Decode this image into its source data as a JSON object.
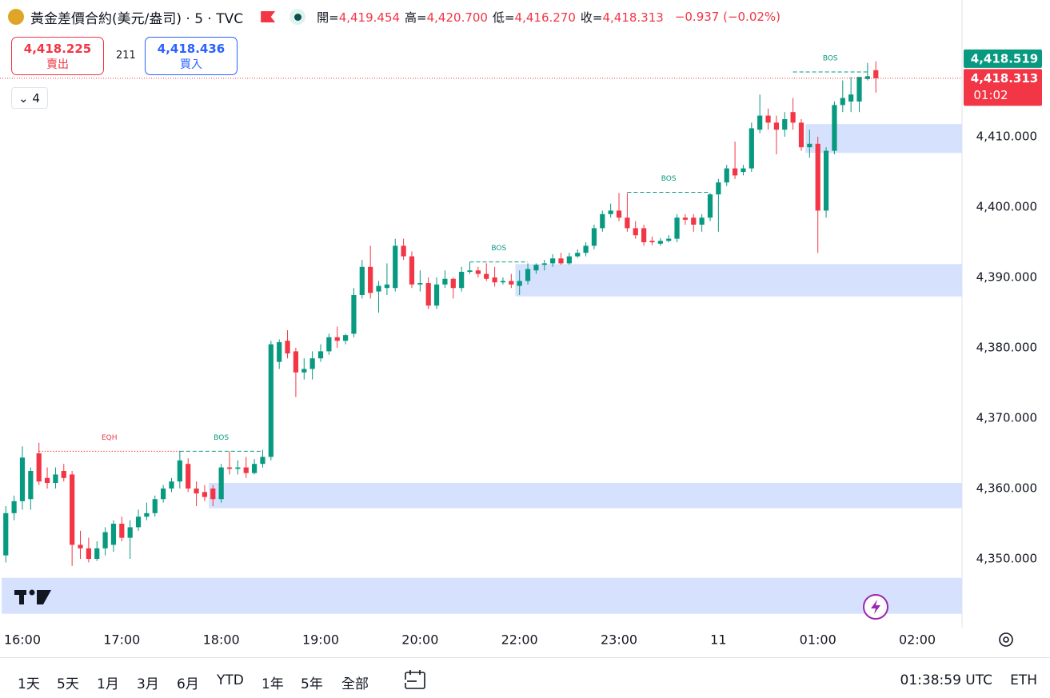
{
  "header": {
    "symbol": "黃金差價合約(美元/盎司) · 5 · TVC",
    "ohlc": [
      {
        "label": "開=",
        "value": "4,419.454"
      },
      {
        "label": "高=",
        "value": "4,420.700"
      },
      {
        "label": "低=",
        "value": "4,416.270"
      },
      {
        "label": "收=",
        "value": "4,418.313"
      }
    ],
    "change": "−0.937 (−0.02%)"
  },
  "trade": {
    "sell_price": "4,418.225",
    "sell_label": "賣出",
    "spread": "211",
    "buy_price": "4,418.436",
    "buy_label": "買入"
  },
  "indicators": "4",
  "toolbar": {
    "ranges": [
      "1天",
      "5天",
      "1月",
      "3月",
      "6月",
      "YTD",
      "1年",
      "5年",
      "全部"
    ],
    "clock": "01:38:59 UTC",
    "session": "ETH"
  },
  "chart_data": {
    "type": "candlestick",
    "up_color": "#089981",
    "down_color": "#f23645",
    "xlim": [
      -0.7,
      115.4
    ],
    "xticks": [
      {
        "value": 2,
        "label": "16:00"
      },
      {
        "value": 14,
        "label": "17:00"
      },
      {
        "value": 26,
        "label": "18:00"
      },
      {
        "value": 38,
        "label": "19:00"
      },
      {
        "value": 50,
        "label": "20:00"
      },
      {
        "value": 62,
        "label": "22:00"
      },
      {
        "value": 74,
        "label": "23:00"
      },
      {
        "value": 86,
        "label": "11"
      },
      {
        "value": 98,
        "label": "01:00"
      },
      {
        "value": 110,
        "label": "02:00"
      }
    ],
    "ylim": [
      4340.23,
      4429.43
    ],
    "yticks": [
      {
        "value": 4350,
        "label": "4,350.000"
      },
      {
        "value": 4360,
        "label": "4,360.000"
      },
      {
        "value": 4370,
        "label": "4,370.000"
      },
      {
        "value": 4380,
        "label": "4,380.000"
      },
      {
        "value": 4390,
        "label": "4,390.000"
      },
      {
        "value": 4400,
        "label": "4,400.000"
      },
      {
        "value": 4410,
        "label": "4,410.000"
      }
    ],
    "grid": true,
    "open": [
      4350.5,
      4356.5,
      4358.2,
      4358.5,
      4365,
      4361.5,
      4360.8,
      4362.5,
      4362,
      4352,
      4351.5,
      4350,
      4351.5,
      4352,
      4355,
      4353,
      4354.5,
      4356,
      4356.5,
      4358.5,
      4360,
      4361,
      4363.5,
      4360,
      4359.5,
      4360,
      4358.5,
      4363,
      4362.8,
      4363,
      4362.2,
      4363.5,
      4364.5,
      4378,
      4381,
      4379.5,
      4376.5,
      4377,
      4378.5,
      4379.5,
      4381.5,
      4381,
      4382,
      4387.5,
      4391.5,
      4388,
      4388.5,
      4388.5,
      4394.5,
      4393,
      4389,
      4389.2,
      4386,
      4389,
      4389.8,
      4388.5,
      4390.8,
      4391,
      4390.5,
      4390,
      4389.3,
      4389.5,
      4388.8,
      4389.5,
      4391,
      4391.8,
      4392,
      4392.7,
      4392,
      4393,
      4393.5,
      4394.5,
      4397,
      4399,
      4399.5,
      4398.5,
      4397,
      4397,
      4395.2,
      4394.8,
      4395.2,
      4395.5,
      4398.5,
      4398.5,
      4397.5,
      4398.5,
      4401.8,
      4403.5,
      4405.5,
      4405,
      4405.5,
      4411,
      4413,
      4412,
      4411,
      4413.5,
      4412,
      4408.5,
      4409,
      4399.5,
      4408,
      4414.5,
      4415,
      4415,
      4418.2,
      4419.454
    ],
    "high": [
      4357.5,
      4359,
      4366,
      4363,
      4366.5,
      4363,
      4363,
      4363.5,
      4362.5,
      4354,
      4353,
      4352.5,
      4354.5,
      4355.5,
      4356,
      4355.5,
      4357,
      4358,
      4359,
      4360.5,
      4361.5,
      4365.3,
      4364.3,
      4361,
      4360.5,
      4360.5,
      4363.5,
      4365.3,
      4364,
      4364.5,
      4364.2,
      4365.5,
      4381,
      4381.2,
      4382.5,
      4380,
      4378.5,
      4379.5,
      4380.5,
      4382,
      4383,
      4382,
      4388.5,
      4392.5,
      4394.5,
      4389.5,
      4392,
      4395.5,
      4395.5,
      4393.7,
      4391,
      4390,
      4390,
      4391,
      4390,
      4391.5,
      4392.2,
      4391.5,
      4392,
      4391.5,
      4390,
      4390.5,
      4391,
      4392,
      4392,
      4392.5,
      4393.3,
      4393.5,
      4393.5,
      4394,
      4395,
      4397.5,
      4399.5,
      4400.5,
      4402,
      4402,
      4398,
      4397.5,
      4395.8,
      4395.6,
      4396,
      4399,
      4399,
      4399,
      4399,
      4402,
      4404,
      4406,
      4409.3,
      4406,
      4412,
      4416,
      4414,
      4413,
      4413.5,
      4415.5,
      4412.5,
      4411,
      4410,
      4408.5,
      4415,
      4418,
      4418.5,
      4418.5,
      4420.5,
      4420.7
    ],
    "low": [
      4349.5,
      4355.5,
      4357,
      4357,
      4360.5,
      4360,
      4360,
      4361,
      4349,
      4350,
      4349.5,
      4349.7,
      4350.5,
      4351,
      4352.5,
      4350,
      4354,
      4355.5,
      4356,
      4358,
      4359.5,
      4360,
      4359.5,
      4357.5,
      4358.2,
      4357.5,
      4358,
      4362,
      4362,
      4361.5,
      4362,
      4363,
      4364,
      4377,
      4378.5,
      4373,
      4375.5,
      4375.5,
      4378,
      4379,
      4380,
      4380.5,
      4381.5,
      4387,
      4387,
      4385,
      4387.5,
      4388,
      4392.5,
      4388.5,
      4388,
      4385.5,
      4385.5,
      4388.5,
      4387,
      4388,
      4390.5,
      4390,
      4389.5,
      4388.7,
      4389,
      4388.5,
      4387.5,
      4389,
      4390.5,
      4391,
      4391.5,
      4391.8,
      4391.8,
      4392.8,
      4393,
      4394,
      4396.5,
      4398.5,
      4398,
      4396.5,
      4395.5,
      4394.5,
      4394.6,
      4394.5,
      4395,
      4395,
      4397.5,
      4396.5,
      4396.5,
      4398,
      4396.5,
      4403,
      4404,
      4404.5,
      4405,
      4410.5,
      4411,
      4407.5,
      4410,
      4411,
      4408,
      4407,
      4393.5,
      4398.5,
      4407.5,
      4413.5,
      4413.5,
      4413.5,
      4418,
      4416.27
    ],
    "close": [
      4356.5,
      4358.2,
      4364.4,
      4362.5,
      4361,
      4360.8,
      4362,
      4361.5,
      4352,
      4351.5,
      4350,
      4351.5,
      4353.8,
      4355,
      4353,
      4354.5,
      4356,
      4356.5,
      4358.5,
      4360,
      4361,
      4364,
      4360,
      4359.3,
      4358.8,
      4358.5,
      4363,
      4362.8,
      4363,
      4362.2,
      4363.5,
      4364.5,
      4380.5,
      4380.8,
      4379.2,
      4376.5,
      4377,
      4378.5,
      4379.5,
      4381.5,
      4381,
      4381.8,
      4387.5,
      4391.5,
      4387.8,
      4388.8,
      4389,
      4394.5,
      4393,
      4389,
      4389.2,
      4386,
      4389,
      4389.8,
      4388.5,
      4390.8,
      4391,
      4390.5,
      4389.8,
      4389.3,
      4389.5,
      4389,
      4389.5,
      4391.2,
      4391.8,
      4392,
      4392.7,
      4392,
      4393,
      4393.5,
      4394.5,
      4397,
      4399,
      4399.5,
      4398.5,
      4397,
      4396,
      4395,
      4395,
      4395.2,
      4395.5,
      4398.5,
      4398.2,
      4397.5,
      4398.5,
      4401.8,
      4403.5,
      4405.5,
      4404.5,
      4405.5,
      4411.2,
      4413,
      4412,
      4411,
      4412.5,
      4412,
      4408.5,
      4409,
      4399.5,
      4408,
      4414.5,
      4415.5,
      4416,
      4418.5,
      4418.6,
      4418.313
    ],
    "zones": [
      {
        "start": 62,
        "top": 4391.9,
        "bottom": 4387.3
      },
      {
        "start": 97,
        "top": 4411.8,
        "bottom": 4407.7
      },
      {
        "start": 25,
        "top": 4360.8,
        "bottom": 4357.2
      },
      {
        "start": 0,
        "top": 4347.3,
        "bottom": 4342.2
      }
    ],
    "zone_color": "#d6e2fd",
    "levels": [
      {
        "label": "EQH",
        "start": 4,
        "end": 21,
        "value": 4365.3,
        "color": "#f23645",
        "style": "dotted"
      },
      {
        "label": "BOS",
        "start": 21,
        "end": 31,
        "value": 4365.3,
        "color": "#089981",
        "style": "dashed"
      },
      {
        "label": "BOS",
        "start": 56,
        "end": 63,
        "value": 4392.2,
        "color": "#089981",
        "style": "dashed"
      },
      {
        "label": "BOS",
        "start": 75,
        "end": 85,
        "value": 4402.1,
        "color": "#089981",
        "style": "dashed"
      },
      {
        "label": "BOS",
        "start": 95,
        "end": 104,
        "value": 4419.2,
        "color": "#089981",
        "style": "dashed"
      }
    ],
    "price_tags": [
      {
        "value": 4418.519,
        "label": "4,418.519",
        "color": "#089981"
      },
      {
        "value": 4418.313,
        "label": "4,418.313",
        "countdown": "01:02",
        "color": "#f23645"
      }
    ]
  }
}
